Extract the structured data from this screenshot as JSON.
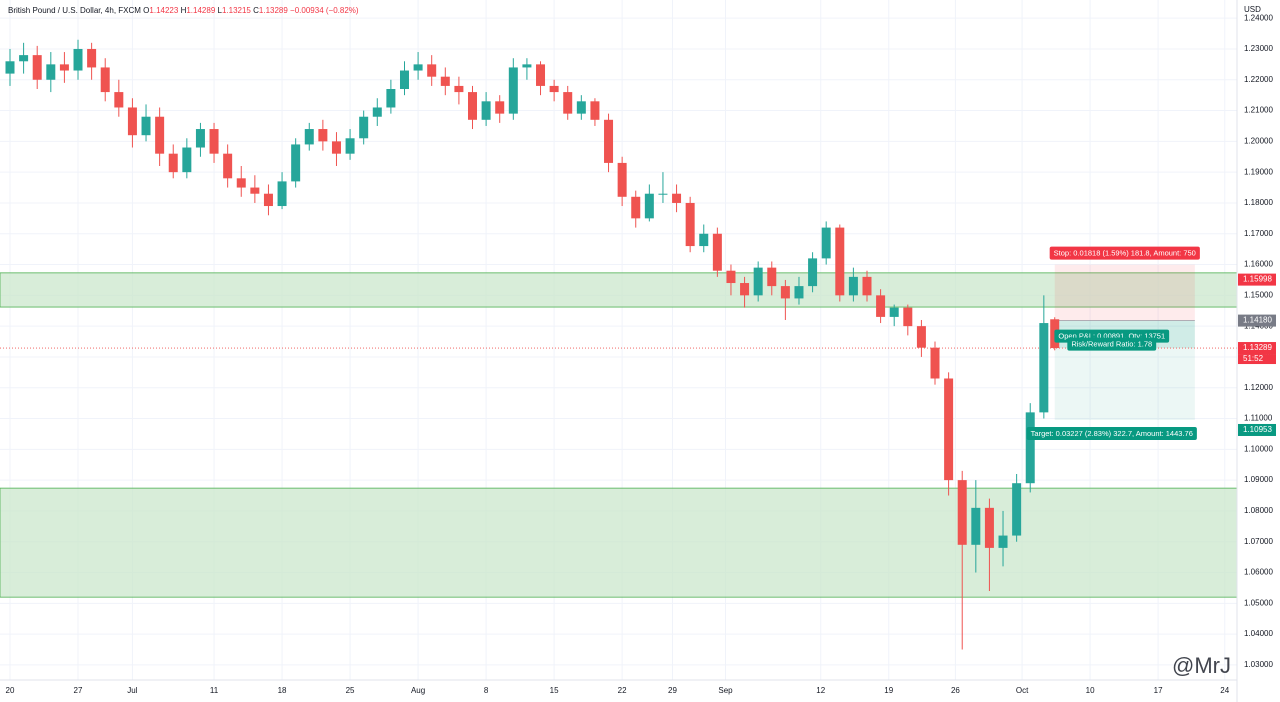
{
  "chart_data": {
    "type": "candlestick",
    "title": "British Pound / U.S. Dollar, 4h, FXCM",
    "ohlc": [
      {
        "key": "O",
        "value": 1.14223
      },
      {
        "key": "H",
        "value": 1.14289
      },
      {
        "key": "L",
        "value": 1.13215
      },
      {
        "key": "C",
        "value": 1.13289
      }
    ],
    "change": "−0.00934 (−0.82%)",
    "axis_unit": "USD",
    "up_color": "#26a69a",
    "down_color": "#ef5350",
    "grid": true,
    "x": [
      0,
      1,
      2,
      3,
      4,
      5,
      6,
      7,
      8,
      9,
      10,
      11,
      12,
      13,
      14,
      15,
      16,
      17,
      18,
      19,
      20,
      21,
      22,
      23,
      24,
      25,
      26,
      27,
      28,
      29,
      30,
      31,
      32,
      33,
      34,
      35,
      36,
      37,
      38,
      39,
      40,
      41,
      42,
      43,
      44,
      45,
      46,
      47,
      48,
      49,
      50,
      51,
      52,
      53,
      54,
      55,
      56,
      57,
      58,
      59,
      60,
      61,
      62,
      63,
      64,
      65,
      66,
      67,
      68,
      69,
      70,
      71,
      72,
      73,
      74,
      75,
      76,
      76.8
    ],
    "open": [
      1.222,
      1.226,
      1.228,
      1.22,
      1.225,
      1.223,
      1.23,
      1.224,
      1.216,
      1.211,
      1.202,
      1.208,
      1.196,
      1.19,
      1.198,
      1.204,
      1.196,
      1.188,
      1.185,
      1.183,
      1.179,
      1.187,
      1.199,
      1.204,
      1.2,
      1.196,
      1.201,
      1.208,
      1.211,
      1.217,
      1.223,
      1.225,
      1.221,
      1.218,
      1.216,
      1.207,
      1.213,
      1.209,
      1.224,
      1.225,
      1.218,
      1.216,
      1.209,
      1.213,
      1.207,
      1.193,
      1.182,
      1.175,
      1.183,
      1.183,
      1.18,
      1.166,
      1.17,
      1.158,
      1.154,
      1.15,
      1.159,
      1.153,
      1.149,
      1.153,
      1.162,
      1.172,
      1.15,
      1.156,
      1.15,
      1.143,
      1.146,
      1.14,
      1.133,
      1.123,
      1.09,
      1.069,
      1.081,
      1.068,
      1.072,
      1.089,
      1.112,
      1.14223
    ],
    "high": [
      1.23,
      1.232,
      1.231,
      1.229,
      1.229,
      1.233,
      1.232,
      1.227,
      1.22,
      1.214,
      1.212,
      1.211,
      1.199,
      1.201,
      1.206,
      1.206,
      1.199,
      1.192,
      1.189,
      1.186,
      1.19,
      1.201,
      1.206,
      1.207,
      1.203,
      1.204,
      1.21,
      1.214,
      1.22,
      1.226,
      1.229,
      1.228,
      1.224,
      1.221,
      1.218,
      1.216,
      1.215,
      1.227,
      1.227,
      1.226,
      1.22,
      1.218,
      1.215,
      1.214,
      1.209,
      1.195,
      1.184,
      1.186,
      1.19,
      1.186,
      1.182,
      1.173,
      1.172,
      1.16,
      1.156,
      1.161,
      1.161,
      1.155,
      1.156,
      1.164,
      1.174,
      1.173,
      1.159,
      1.158,
      1.152,
      1.147,
      1.147,
      1.142,
      1.135,
      1.125,
      1.093,
      1.09,
      1.084,
      1.08,
      1.092,
      1.115,
      1.15,
      1.14289
    ],
    "low": [
      1.218,
      1.222,
      1.217,
      1.216,
      1.219,
      1.22,
      1.22,
      1.213,
      1.208,
      1.198,
      1.2,
      1.192,
      1.188,
      1.188,
      1.195,
      1.193,
      1.185,
      1.182,
      1.18,
      1.176,
      1.178,
      1.185,
      1.197,
      1.197,
      1.192,
      1.194,
      1.199,
      1.205,
      1.209,
      1.215,
      1.22,
      1.218,
      1.215,
      1.212,
      1.204,
      1.205,
      1.206,
      1.207,
      1.22,
      1.215,
      1.213,
      1.207,
      1.207,
      1.205,
      1.19,
      1.179,
      1.172,
      1.174,
      1.18,
      1.177,
      1.164,
      1.164,
      1.156,
      1.15,
      1.146,
      1.148,
      1.15,
      1.142,
      1.147,
      1.151,
      1.16,
      1.148,
      1.148,
      1.148,
      1.141,
      1.14,
      1.137,
      1.13,
      1.121,
      1.085,
      1.035,
      1.06,
      1.054,
      1.062,
      1.07,
      1.086,
      1.11,
      1.13215
    ],
    "close": [
      1.226,
      1.228,
      1.22,
      1.225,
      1.223,
      1.23,
      1.224,
      1.216,
      1.211,
      1.202,
      1.208,
      1.196,
      1.19,
      1.198,
      1.204,
      1.196,
      1.188,
      1.185,
      1.183,
      1.179,
      1.187,
      1.199,
      1.204,
      1.2,
      1.196,
      1.201,
      1.208,
      1.211,
      1.217,
      1.223,
      1.225,
      1.221,
      1.218,
      1.216,
      1.207,
      1.213,
      1.209,
      1.224,
      1.225,
      1.218,
      1.216,
      1.209,
      1.213,
      1.207,
      1.193,
      1.182,
      1.175,
      1.183,
      1.183,
      1.18,
      1.166,
      1.17,
      1.158,
      1.154,
      1.15,
      1.159,
      1.153,
      1.149,
      1.153,
      1.162,
      1.172,
      1.15,
      1.156,
      1.15,
      1.143,
      1.146,
      1.14,
      1.133,
      1.123,
      1.09,
      1.069,
      1.081,
      1.068,
      1.072,
      1.089,
      1.112,
      1.141,
      1.13289
    ],
    "xlim": [
      -0.735,
      90.2
    ],
    "xticks": [
      {
        "value": 0,
        "label": "20"
      },
      {
        "value": 5,
        "label": "27"
      },
      {
        "value": 9,
        "label": "Jul"
      },
      {
        "value": 15,
        "label": "11"
      },
      {
        "value": 20,
        "label": "18"
      },
      {
        "value": 25,
        "label": "25"
      },
      {
        "value": 30,
        "label": "Aug"
      },
      {
        "value": 35,
        "label": "8"
      },
      {
        "value": 40,
        "label": "15"
      },
      {
        "value": 45,
        "label": "22"
      },
      {
        "value": 48.7,
        "label": "29"
      },
      {
        "value": 52.6,
        "label": "Sep"
      },
      {
        "value": 59.6,
        "label": "12"
      },
      {
        "value": 64.6,
        "label": "19"
      },
      {
        "value": 69.5,
        "label": "26"
      },
      {
        "value": 74.4,
        "label": "Oct"
      },
      {
        "value": 79.4,
        "label": "10"
      },
      {
        "value": 84.4,
        "label": "17"
      },
      {
        "value": 89.3,
        "label": "24"
      }
    ],
    "ylim": [
      1.0251,
      1.2459
    ],
    "yticks": [
      {
        "value": 1.03,
        "label": "1.03000"
      },
      {
        "value": 1.04,
        "label": "1.04000"
      },
      {
        "value": 1.05,
        "label": "1.05000"
      },
      {
        "value": 1.06,
        "label": "1.06000"
      },
      {
        "value": 1.07,
        "label": "1.07000"
      },
      {
        "value": 1.08,
        "label": "1.08000"
      },
      {
        "value": 1.09,
        "label": "1.09000"
      },
      {
        "value": 1.1,
        "label": "1.10000"
      },
      {
        "value": 1.11,
        "label": "1.11000"
      },
      {
        "value": 1.12,
        "label": "1.12000"
      },
      {
        "value": 1.13,
        "label": "1.13000"
      },
      {
        "value": 1.14,
        "label": "1.14000"
      },
      {
        "value": 1.15,
        "label": "1.15000"
      },
      {
        "value": 1.16,
        "label": "1.16000"
      },
      {
        "value": 1.17,
        "label": "1.17000"
      },
      {
        "value": 1.18,
        "label": "1.18000"
      },
      {
        "value": 1.19,
        "label": "1.19000"
      },
      {
        "value": 1.2,
        "label": "1.20000"
      },
      {
        "value": 1.21,
        "label": "1.21000"
      },
      {
        "value": 1.22,
        "label": "1.22000"
      },
      {
        "value": 1.23,
        "label": "1.23000"
      },
      {
        "value": 1.24,
        "label": "1.24000"
      }
    ],
    "zones": [
      {
        "from": 1.1462,
        "to": 1.1573,
        "color": "#c8e6c9"
      },
      {
        "from": 1.052,
        "to": 1.0874,
        "color": "#c8e6c9"
      }
    ],
    "position": {
      "x_start": 76.8,
      "x_end": 87.1,
      "stop": {
        "value": 1.15998,
        "label": "1.15998"
      },
      "entry": {
        "value": 1.1418,
        "label": "1.14180"
      },
      "target": {
        "value": 1.10953,
        "label": "1.10953"
      },
      "current": {
        "value": 1.13289,
        "label": "1.13289"
      },
      "countdown": "51:52",
      "stop_text": "Stop: 0.01818 (1.59%) 181.8, Amount: 750",
      "pnl_text": "Open P&L: 0.00891, Qty: 13751",
      "rr_text": "Risk/Reward Ratio: 1.78",
      "target_text": "Target: 0.03227 (2.83%) 322.7, Amount: 1443.76"
    },
    "watermark": "@MrJ"
  }
}
